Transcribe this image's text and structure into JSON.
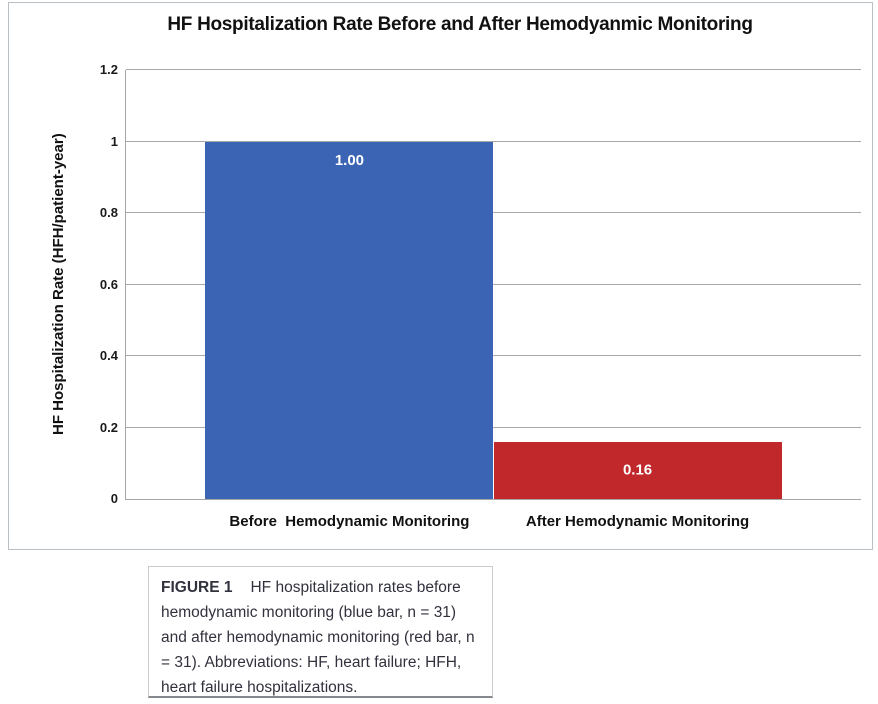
{
  "chart_data": {
    "type": "bar",
    "title": "HF Hospitalization Rate Before and After Hemodyanmic Monitoring",
    "xlabel": "",
    "ylabel": "HF Hospitalization Rate (HFH/patient-year)",
    "ylim": [
      0,
      1.2
    ],
    "yticks": [
      0,
      0.2,
      0.4,
      0.6,
      0.8,
      1,
      1.2
    ],
    "ytick_labels": [
      "0",
      "0.2",
      "0.4",
      "0.6",
      "0.8",
      "1",
      "1.2"
    ],
    "grid": true,
    "legend": "none",
    "categories": [
      "Before  Hemodynamic Monitoring",
      "After Hemodynamic Monitoring"
    ],
    "values": [
      1.0,
      0.16
    ],
    "value_labels": [
      "1.00",
      "0.16"
    ],
    "bar_colors": [
      "#3c64b4",
      "#c1282c"
    ],
    "bar_names": [
      "before-hemodynamic-monitoring",
      "after-hemodynamic-monitoring"
    ]
  },
  "caption": {
    "label": "FIGURE 1",
    "text": "HF hospitalization rates before hemodynamic monitoring (blue bar, n = 31) and after hemodynamic monitoring (red bar, n = 31). Abbreviations: HF, heart failure; HFH, heart failure hospitalizations."
  }
}
